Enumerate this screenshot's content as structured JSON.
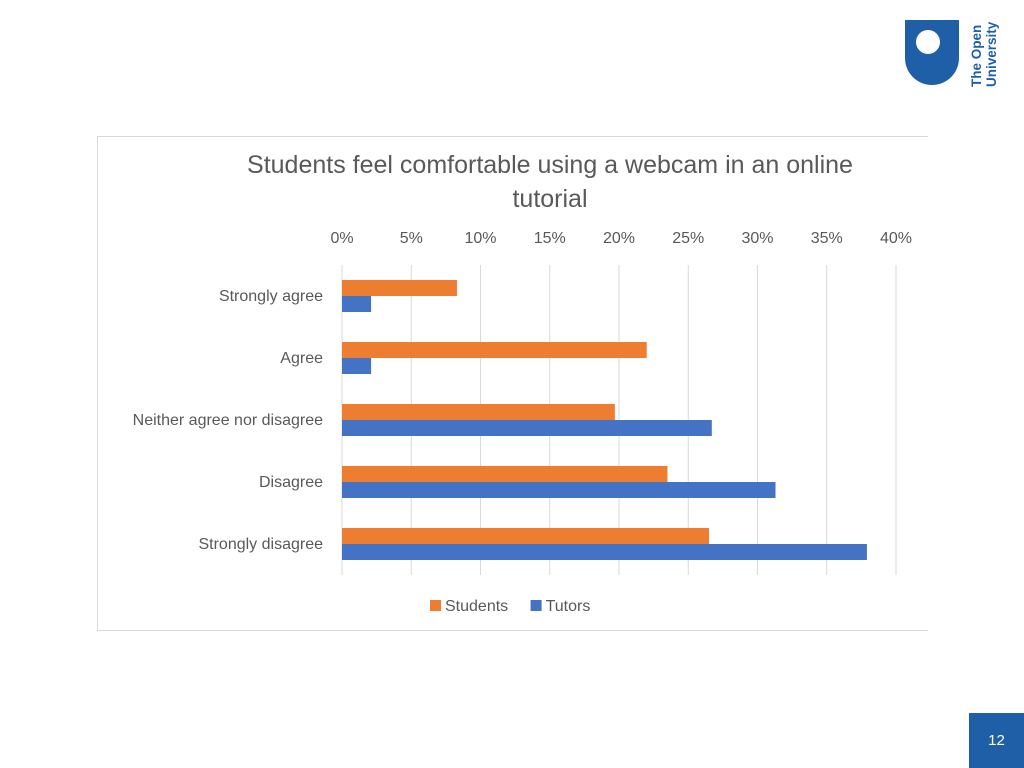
{
  "logo": {
    "line1": "The Open",
    "line2": "University",
    "color": "#1f5fa8"
  },
  "page_number": "12",
  "chart_data": {
    "type": "bar",
    "orientation": "horizontal",
    "title": "Students feel comfortable using a webcam in an online tutorial",
    "xlabel": "",
    "ylabel": "",
    "categories": [
      "Strongly agree",
      "Agree",
      "Neither agree nor disagree",
      "Disagree",
      "Strongly disagree"
    ],
    "series": [
      {
        "name": "Students",
        "color": "#ed7d31",
        "values": [
          8.3,
          22.0,
          19.7,
          23.5,
          26.5
        ]
      },
      {
        "name": "Tutors",
        "color": "#4472c4",
        "values": [
          2.1,
          2.1,
          26.7,
          31.3,
          37.9
        ]
      }
    ],
    "xlim": [
      0,
      40
    ],
    "ticks": [
      "0%",
      "5%",
      "10%",
      "15%",
      "20%",
      "25%",
      "30%",
      "35%",
      "40%"
    ],
    "tick_values": [
      0,
      5,
      10,
      15,
      20,
      25,
      30,
      35,
      40
    ],
    "axis_position": "top",
    "grid": true,
    "legend": "bottom"
  }
}
